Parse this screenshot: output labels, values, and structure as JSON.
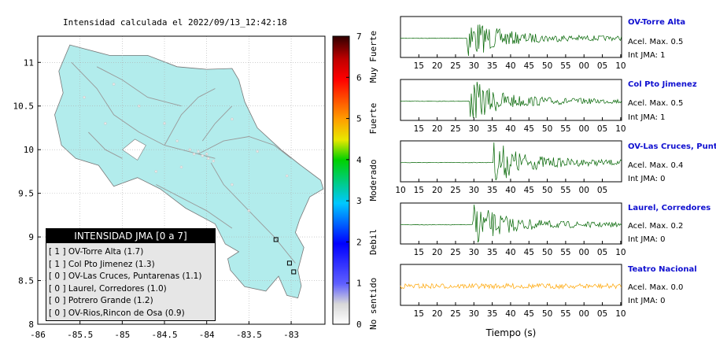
{
  "page_title": "Intensidad calculada el 2022/09/13_12:42:18",
  "map": {
    "xticks": [
      "-86",
      "-85.5",
      "-85",
      "-84.5",
      "-84",
      "-83.5",
      "-83"
    ],
    "yticks": [
      "11",
      "10.5",
      "10",
      "9.5",
      "9",
      "8.5",
      "8"
    ],
    "land_color": "#b2ecec",
    "road_color": "#999999"
  },
  "colorbar": {
    "ticks": [
      "0",
      "1",
      "2",
      "3",
      "4",
      "5",
      "6",
      "7"
    ],
    "categories": [
      "No sentido",
      "Debil",
      "Moderado",
      "Fuerte",
      "Muy Fuerte"
    ]
  },
  "legend": {
    "title": "INTENSIDAD JMA [0 a 7]",
    "items": [
      "[ 1 ]  OV-Torre Alta (1.7)",
      "[ 1 ]  Col Pto Jimenez (1.3)",
      "[ 0 ]  OV-Las Cruces, Puntarenas (1.1)",
      "[ 0 ]  Laurel, Corredores (1.0)",
      "[ 0 ]  Potrero Grande (1.2)",
      "[ 0 ]  OV-Rios,Rincon de Osa (0.9)"
    ]
  },
  "stations_panel": [
    {
      "name": "OV-Torre Alta",
      "acel": "Acel. Max. 0.5",
      "int": "Int JMA: 1",
      "ticks": [
        "15",
        "20",
        "25",
        "30",
        "35",
        "40",
        "45",
        "50",
        "55",
        "00",
        "05",
        "10"
      ],
      "color": "#006400"
    },
    {
      "name": "Col Pto Jimenez",
      "acel": "Acel. Max. 0.5",
      "int": "Int JMA: 1",
      "ticks": [
        "15",
        "20",
        "25",
        "30",
        "35",
        "40",
        "45",
        "50",
        "55",
        "00",
        "05",
        "10"
      ],
      "color": "#006400"
    },
    {
      "name": "OV-Las Cruces, Puntar",
      "acel": "Acel. Max. 0.4",
      "int": "Int JMA: 0",
      "ticks": [
        "10",
        "15",
        "20",
        "25",
        "30",
        "35",
        "40",
        "45",
        "50",
        "55",
        "00",
        "05"
      ],
      "color": "#006400"
    },
    {
      "name": "Laurel, Corredores",
      "acel": "Acel. Max. 0.2",
      "int": "Int JMA: 0",
      "ticks": [
        "15",
        "20",
        "25",
        "30",
        "35",
        "40",
        "45",
        "50",
        "55",
        "00",
        "05",
        "10"
      ],
      "color": "#006400"
    },
    {
      "name": "Teatro Nacional",
      "acel": "Acel. Max. 0.0",
      "int": "Int JMA: 0",
      "ticks": [
        "15",
        "20",
        "25",
        "30",
        "35",
        "40",
        "45",
        "50",
        "55",
        "00",
        "05",
        "10"
      ],
      "color": "#ffa500"
    }
  ],
  "xlabel_waveforms": "Tiempo (s)",
  "chart_data": [
    {
      "type": "scatter",
      "title": "Intensidad calculada el 2022/09/13_12:42:18",
      "xlim": [
        -86,
        -82.6
      ],
      "ylim": [
        8,
        11.3
      ],
      "grid": true,
      "legend_placement": "bottom-left",
      "colorbar": {
        "range": [
          0,
          7
        ],
        "labels": [
          "No sentido",
          "Debil",
          "Moderado",
          "Fuerte",
          "Muy Fuerte"
        ]
      },
      "stations": [
        {
          "name": "Potrero Grande",
          "x": -83.18,
          "y": 8.97
        },
        {
          "name": "Col Pto Jimenez",
          "x": -83.02,
          "y": 8.7
        },
        {
          "name": "Laurel, Corredores",
          "x": -82.97,
          "y": 8.6
        }
      ]
    },
    {
      "type": "line",
      "xlabel": "Tiempo (s)",
      "series": [
        {
          "name": "OV-Torre Alta",
          "acel_max": 0.5,
          "int_jma": 1,
          "onset_index": 4.85
        },
        {
          "name": "Col Pto Jimenez",
          "acel_max": 0.5,
          "int_jma": 1,
          "onset_index": 5.05
        },
        {
          "name": "OV-Las Cruces, Puntar",
          "acel_max": 0.4,
          "int_jma": 0,
          "onset_index": 7.9
        },
        {
          "name": "Laurel, Corredores",
          "acel_max": 0.2,
          "int_jma": 0,
          "onset_index": 5.25
        },
        {
          "name": "Teatro Nacional",
          "acel_max": 0.0,
          "int_jma": 0,
          "onset_index": null
        }
      ]
    }
  ]
}
